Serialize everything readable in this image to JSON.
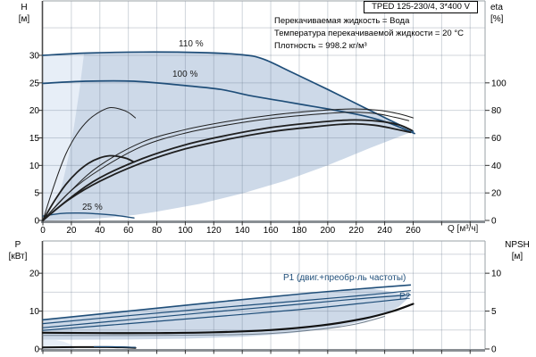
{
  "window": {
    "title_box": "TPED 125-230/4, 3*400 V"
  },
  "info_lines": [
    "Перекачиваемая жидкость = Вода",
    "Температура перекачиваемой жидкости = 20 °C",
    "Плотность = 998.2 кг/м³"
  ],
  "colors": {
    "curve_blue": "#1f4e79",
    "curve_dark": "#1f1f1f",
    "curve_black": "#111111",
    "curve_gray": "#6f7d8c",
    "shade_main": "#cdd9e8",
    "shade_light": "#e7eef7",
    "grid": "rgba(100,115,135,0.30)",
    "frame": "#9aa0a6",
    "axis_dark": "#4a4a4a",
    "axis_bottom": "#8a8f94",
    "tick": "#333333"
  },
  "top_chart": {
    "y_left_label": [
      "H",
      "[м]"
    ],
    "y_right_label": [
      "eta",
      "[%]"
    ],
    "x_axis_label": "Q [м³/ч]",
    "curve_labels": [
      {
        "text": "110 %",
        "x": 200,
        "y": 44
      },
      {
        "text": "100 %",
        "x": 193,
        "y": 78
      },
      {
        "text": "25 %",
        "x": 92,
        "y": 227
      }
    ]
  },
  "bottom_chart": {
    "y_left_label": [
      "P",
      "[кВт]"
    ],
    "y_right_label": [
      "NPSH",
      "[м]"
    ],
    "curve_labels": [
      {
        "text": "P1 (двиг.+преобр-ль частоты)",
        "x": 317,
        "y": 306
      },
      {
        "text": "P2",
        "x": 447,
        "y": 327
      }
    ]
  },
  "chart_data": [
    {
      "type": "line",
      "title": "Pump performance curves H and eta vs Q",
      "xlabel": "Q [м³/ч]",
      "ylabel_left": "H [м]",
      "ylabel_right": "eta [%]",
      "xlim": [
        0,
        310
      ],
      "ylim_left": [
        0,
        40
      ],
      "ylim_right": [
        0,
        160
      ],
      "grid": true,
      "x_ticks": [
        0,
        20,
        40,
        60,
        80,
        100,
        120,
        140,
        160,
        180,
        200,
        220,
        240,
        260
      ],
      "left_ticks": [
        0,
        5,
        10,
        15,
        20,
        25,
        30
      ],
      "right_ticks": [
        0,
        20,
        40,
        60,
        80,
        100
      ],
      "grid_q": [
        20,
        40,
        60,
        80,
        100,
        120,
        140,
        160,
        180,
        200,
        220,
        240,
        260,
        280,
        300
      ],
      "grid_left": [
        5,
        10,
        15,
        20,
        25,
        30,
        35
      ],
      "show_x_labels": true,
      "regions": [
        {
          "name": "duty-envelope",
          "unit": "H",
          "fill": "shade_main",
          "points": [
            [
              0,
              30.0
            ],
            [
              30,
              30.4
            ],
            [
              70,
              30.6
            ],
            [
              110,
              30.5
            ],
            [
              140,
              30.1
            ],
            [
              155,
              29.3
            ],
            [
              175,
              26.9
            ],
            [
              200,
              23.8
            ],
            [
              225,
              20.6
            ],
            [
              243,
              18.3
            ],
            [
              260,
              16.2
            ],
            [
              230,
              13.2
            ],
            [
              200,
              10.0
            ],
            [
              170,
              7.2
            ],
            [
              140,
              4.9
            ],
            [
              110,
              3.0
            ],
            [
              80,
              1.6
            ],
            [
              65,
              1.0
            ],
            [
              50,
              0.6
            ],
            [
              35,
              0.3
            ],
            [
              20,
              0.1
            ],
            [
              0,
              0
            ]
          ]
        },
        {
          "name": "low-flow-band",
          "unit": "H",
          "fill": "shade_light",
          "points": [
            [
              0,
              30.1
            ],
            [
              15,
              30.35
            ],
            [
              29,
              30.5
            ],
            [
              26,
              24.2
            ],
            [
              22,
              17.3
            ],
            [
              18,
              11.6
            ],
            [
              14,
              7.0
            ],
            [
              9,
              2.9
            ],
            [
              4,
              0.6
            ],
            [
              0,
              0
            ]
          ]
        }
      ],
      "series": [
        {
          "name": "H-110%",
          "unit": "H",
          "color": "blue",
          "width": 1.7,
          "points": [
            [
              0,
              30.0
            ],
            [
              30,
              30.4
            ],
            [
              70,
              30.6
            ],
            [
              110,
              30.5
            ],
            [
              140,
              30.1
            ],
            [
              155,
              29.3
            ],
            [
              175,
              26.9
            ],
            [
              200,
              23.8
            ],
            [
              225,
              20.6
            ],
            [
              243,
              18.3
            ],
            [
              260,
              16.2
            ]
          ]
        },
        {
          "name": "H-100%",
          "unit": "H",
          "color": "blue",
          "width": 1.7,
          "points": [
            [
              0,
              24.9
            ],
            [
              30,
              25.3
            ],
            [
              64,
              25.3
            ],
            [
              100,
              24.5
            ],
            [
              125,
              23.8
            ],
            [
              147,
              22.6
            ],
            [
              170,
              21.6
            ],
            [
              190,
              20.7
            ],
            [
              210,
              19.8
            ],
            [
              227,
              18.9
            ],
            [
              243,
              17.7
            ],
            [
              261,
              15.8
            ]
          ]
        },
        {
          "name": "H-25%",
          "unit": "H",
          "color": "blue",
          "width": 1.4,
          "points": [
            [
              0,
              0.8
            ],
            [
              12,
              1.25
            ],
            [
              25,
              1.35
            ],
            [
              38,
              1.2
            ],
            [
              50,
              0.95
            ],
            [
              64,
              0.45
            ]
          ]
        },
        {
          "name": "eta-pump-110%",
          "unit": "eta",
          "color": "dark",
          "width": 1,
          "points": [
            [
              0,
              0
            ],
            [
              20,
              22
            ],
            [
              40,
              40
            ],
            [
              70,
              57
            ],
            [
              100,
              66
            ],
            [
              130,
              72
            ],
            [
              160,
              76.5
            ],
            [
              190,
              79.5
            ],
            [
              215,
              81
            ],
            [
              235,
              80.2
            ],
            [
              250,
              77.5
            ],
            [
              260,
              74.5
            ]
          ]
        },
        {
          "name": "eta-pump-100%",
          "unit": "eta",
          "color": "dark",
          "width": 1,
          "points": [
            [
              0,
              0
            ],
            [
              18,
              20
            ],
            [
              40,
              37
            ],
            [
              70,
              54
            ],
            [
              100,
              63.5
            ],
            [
              130,
              69.5
            ],
            [
              160,
              74
            ],
            [
              190,
              77
            ],
            [
              215,
              78.6
            ],
            [
              233,
              77.8
            ],
            [
              247,
              75
            ],
            [
              257,
              72.5
            ]
          ]
        },
        {
          "name": "eta-total-110%",
          "unit": "eta",
          "color": "dark",
          "width": 1.8,
          "points": [
            [
              0,
              0
            ],
            [
              20,
              17
            ],
            [
              40,
              31
            ],
            [
              70,
              45
            ],
            [
              100,
              55
            ],
            [
              130,
              62
            ],
            [
              160,
              67.5
            ],
            [
              190,
              71
            ],
            [
              215,
              73
            ],
            [
              235,
              72.2
            ],
            [
              250,
              69.5
            ],
            [
              259,
              65.5
            ]
          ]
        },
        {
          "name": "eta-total-100%",
          "unit": "eta",
          "color": "dark",
          "width": 1.8,
          "points": [
            [
              0,
              0
            ],
            [
              18,
              15
            ],
            [
              40,
              28.5
            ],
            [
              70,
              42
            ],
            [
              100,
              52
            ],
            [
              130,
              59
            ],
            [
              160,
              64.5
            ],
            [
              190,
              68
            ],
            [
              215,
              70.2
            ],
            [
              233,
              69.2
            ],
            [
              247,
              66.5
            ],
            [
              258,
              64
            ]
          ]
        },
        {
          "name": "eta-pump-25%",
          "unit": "eta",
          "color": "dark",
          "width": 1,
          "points": [
            [
              0,
              0
            ],
            [
              8,
              26
            ],
            [
              16,
              48
            ],
            [
              24,
              63
            ],
            [
              32,
              73
            ],
            [
              40,
              79
            ],
            [
              47,
              82
            ],
            [
              54,
              81
            ],
            [
              60,
              78.5
            ],
            [
              65,
              74.5
            ]
          ]
        },
        {
          "name": "eta-total-25%",
          "unit": "eta",
          "color": "dark",
          "width": 1.8,
          "points": [
            [
              0,
              0
            ],
            [
              8,
              14
            ],
            [
              16,
              26
            ],
            [
              24,
              35
            ],
            [
              32,
              41.5
            ],
            [
              40,
              45.5
            ],
            [
              47,
              47
            ],
            [
              53,
              46.5
            ],
            [
              59,
              45
            ],
            [
              64,
              42.5
            ]
          ]
        }
      ]
    },
    {
      "type": "line",
      "title": "Power P1/P2 and NPSH vs Q",
      "xlabel": "Q [м³/ч]",
      "ylabel_left": "P [кВт]",
      "ylabel_right": "NPSH [м]",
      "xlim": [
        0,
        310
      ],
      "ylim_left": [
        0,
        28.5
      ],
      "ylim_right": [
        0,
        14.25
      ],
      "grid": true,
      "x_ticks": [],
      "left_ticks": [
        0,
        10,
        20
      ],
      "right_ticks": [
        0,
        5,
        10
      ],
      "grid_q": [
        20,
        40,
        60,
        80,
        100,
        120,
        140,
        160,
        180,
        200,
        220,
        240,
        260,
        280,
        300
      ],
      "grid_left": [
        5,
        10,
        15,
        20,
        25
      ],
      "show_x_labels": false,
      "regions": [
        {
          "name": "power-envelope",
          "unit": "P",
          "fill": "shade_main",
          "points": [
            [
              0,
              7.7
            ],
            [
              60,
              10.0
            ],
            [
              120,
              12.3
            ],
            [
              180,
              14.5
            ],
            [
              215,
              15.5
            ],
            [
              232,
              15.9
            ],
            [
              246,
              15.0
            ],
            [
              258,
              13.9
            ],
            [
              250,
              11.2
            ],
            [
              240,
              9.2
            ],
            [
              225,
              7.3
            ],
            [
              200,
              5.4
            ],
            [
              170,
              4.0
            ],
            [
              140,
              3.2
            ],
            [
              100,
              2.7
            ],
            [
              60,
              2.5
            ],
            [
              0,
              2.4
            ]
          ]
        },
        {
          "name": "low-flow-band",
          "unit": "P",
          "fill": "shade_light",
          "points": [
            [
              0,
              2.45
            ],
            [
              8,
              2.4
            ],
            [
              14,
              2.0
            ],
            [
              19,
              1.3
            ],
            [
              22,
              0.4
            ],
            [
              22,
              0
            ],
            [
              0,
              0
            ]
          ]
        }
      ],
      "series": [
        {
          "name": "P1-110%",
          "unit": "P",
          "color": "blue",
          "width": 1.6,
          "points": [
            [
              0,
              7.7
            ],
            [
              60,
              10.0
            ],
            [
              120,
              12.3
            ],
            [
              180,
              14.5
            ],
            [
              220,
              15.8
            ],
            [
              258,
              16.9
            ]
          ]
        },
        {
          "name": "P1-100%",
          "unit": "P",
          "color": "blue",
          "width": 1.2,
          "points": [
            [
              0,
              6.7
            ],
            [
              60,
              8.8
            ],
            [
              120,
              10.8
            ],
            [
              180,
              12.7
            ],
            [
              220,
              14.0
            ],
            [
              258,
              15.4
            ]
          ]
        },
        {
          "name": "P2-110%",
          "unit": "P",
          "color": "blue",
          "width": 1.2,
          "points": [
            [
              0,
              5.6
            ],
            [
              60,
              7.7
            ],
            [
              120,
              9.8
            ],
            [
              180,
              11.8
            ],
            [
              220,
              13.2
            ],
            [
              258,
              14.3
            ]
          ]
        },
        {
          "name": "P2-100%",
          "unit": "P",
          "color": "blue",
          "width": 1.2,
          "points": [
            [
              0,
              4.9
            ],
            [
              60,
              6.7
            ],
            [
              120,
              8.5
            ],
            [
              180,
              10.4
            ],
            [
              220,
              11.9
            ],
            [
              255,
              13.3
            ]
          ]
        },
        {
          "name": "NPSH",
          "unit": "NPSH",
          "color": "black",
          "width": 2.2,
          "points": [
            [
              0,
              2.15
            ],
            [
              40,
              2.1
            ],
            [
              80,
              2.1
            ],
            [
              120,
              2.2
            ],
            [
              160,
              2.5
            ],
            [
              195,
              3.1
            ],
            [
              225,
              4.0
            ],
            [
              245,
              4.95
            ],
            [
              260,
              5.95
            ]
          ]
        },
        {
          "name": "NPSH-min",
          "unit": "NPSH",
          "color": "gray",
          "width": 1,
          "points": [
            [
              0,
              1.8
            ],
            [
              60,
              1.78
            ],
            [
              120,
              1.85
            ],
            [
              160,
              2.05
            ],
            [
              195,
              2.6
            ],
            [
              220,
              3.3
            ],
            [
              240,
              4.3
            ]
          ]
        },
        {
          "name": "P-25%",
          "unit": "P",
          "color": "black",
          "width": 2,
          "points": [
            [
              0,
              0.42
            ],
            [
              25,
              0.5
            ],
            [
              45,
              0.5
            ],
            [
              58,
              0.42
            ],
            [
              65,
              0.3
            ]
          ]
        },
        {
          "name": "P-25%-fc",
          "unit": "P",
          "color": "blue",
          "width": 1.1,
          "points": [
            [
              36,
              0.62
            ],
            [
              52,
              0.58
            ],
            [
              65,
              0.42
            ]
          ]
        }
      ]
    }
  ]
}
